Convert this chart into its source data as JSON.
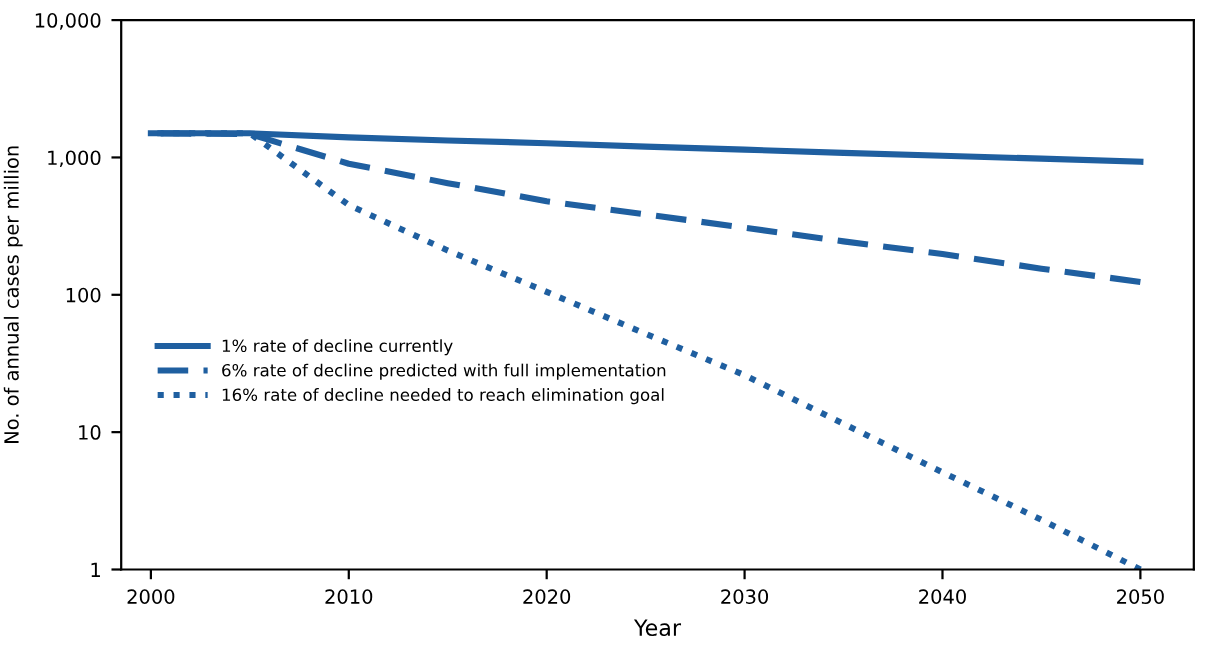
{
  "chart_data": {
    "type": "line",
    "xlabel": "Year",
    "ylabel": "No. of annual cases per million",
    "x": [
      2000,
      2005,
      2010,
      2015,
      2020,
      2025,
      2030,
      2035,
      2040,
      2045,
      2050
    ],
    "series": [
      {
        "name": "1% rate of decline currently",
        "color": "#1f5fa0",
        "line_style": "solid",
        "values": [
          1500,
          1500,
          1400,
          1330,
          1270,
          1200,
          1140,
          1080,
          1030,
          980,
          930
        ]
      },
      {
        "name": "6% rate of decline predicted with full implementation",
        "color": "#1f5fa0",
        "line_style": "dashed",
        "values": [
          1500,
          1480,
          900,
          650,
          480,
          385,
          308,
          245,
          198,
          155,
          124
        ]
      },
      {
        "name": "16% rate of decline needed to reach elimination goal",
        "color": "#1f5fa0",
        "line_style": "dotted",
        "values": [
          1500,
          1500,
          450,
          210,
          105,
          52,
          26,
          11.5,
          5.1,
          2.3,
          1
        ]
      }
    ],
    "log": "y",
    "xlim": [
      1998.5,
      2052.7
    ],
    "ylim": [
      1,
      10000
    ],
    "xticks": [
      2000,
      2010,
      2020,
      2030,
      2040,
      2050
    ],
    "yticks": [
      1,
      10,
      100,
      {
        "value": 1000,
        "label": "1,000"
      },
      {
        "value": 10000,
        "label": "10,000"
      }
    ],
    "grid": false,
    "legend": "left",
    "marker": "none"
  }
}
